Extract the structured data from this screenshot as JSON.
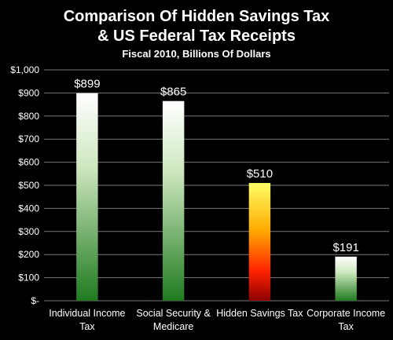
{
  "chart_data": {
    "type": "bar",
    "title_lines": [
      "Comparison Of Hidden Savings Tax",
      "& US Federal Tax Receipts"
    ],
    "subtitle": "Fiscal 2010, Billions Of Dollars",
    "categories": [
      [
        "Individual Income",
        "Tax"
      ],
      [
        "Social Security &",
        "Medicare"
      ],
      [
        "Hidden Savings Tax"
      ],
      [
        "Corporate Income",
        "Tax"
      ]
    ],
    "values": [
      899,
      865,
      510,
      191
    ],
    "data_labels": [
      "$899",
      "$865",
      "$510",
      "$191"
    ],
    "y_ticks": [
      0,
      100,
      200,
      300,
      400,
      500,
      600,
      700,
      800,
      900,
      1000
    ],
    "y_tick_labels": [
      "$-",
      "$100",
      "$200",
      "$300",
      "$400",
      "$500",
      "$600",
      "$700",
      "$800",
      "$900",
      "$1,000"
    ],
    "ylim": [
      0,
      1000
    ],
    "grid": true,
    "legend": "none",
    "colors": {
      "background": "#000000",
      "grid": "#7a7a7a",
      "green_top": "#ffffff",
      "green_bottom": "#1f7a1f",
      "hot_top": "#ffff66",
      "hot_mid": "#ff9900",
      "hot_bottom": "#8b0000",
      "highlight_index": 2
    }
  }
}
